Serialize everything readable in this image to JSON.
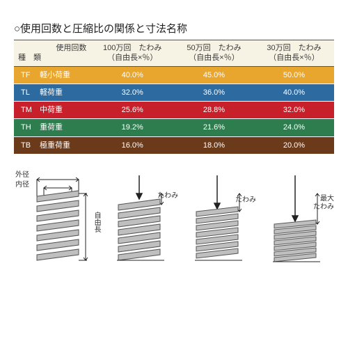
{
  "title": "○使用回数と圧縮比の関係と寸法名称",
  "colors": {
    "header_bg": "#f6f2e4",
    "spring_fill": "#bfbfbf",
    "spring_stroke": "#555555",
    "arrow": "#222222"
  },
  "table": {
    "type": "table",
    "header": {
      "col0_line1": "使用回数",
      "col0_line2": "種　類",
      "col1_line1": "100万回　たわみ",
      "col1_line2": "（自由長×％）",
      "col2_line1": "50万回　たわみ",
      "col2_line2": "（自由長×％）",
      "col3_line1": "30万回　たわみ",
      "col3_line2": "（自由長×％）"
    },
    "rows": [
      {
        "code": "TF",
        "name": "軽小荷重",
        "v1": "40.0%",
        "v2": "45.0%",
        "v3": "50.0%",
        "bg": "#e9a62e"
      },
      {
        "code": "TL",
        "name": "軽荷重",
        "v1": "32.0%",
        "v2": "36.0%",
        "v3": "40.0%",
        "bg": "#2c6aa0"
      },
      {
        "code": "TM",
        "name": "中荷重",
        "v1": "25.6%",
        "v2": "28.8%",
        "v3": "32.0%",
        "bg": "#c8202a"
      },
      {
        "code": "TH",
        "name": "重荷重",
        "v1": "19.2%",
        "v2": "21.6%",
        "v3": "24.0%",
        "bg": "#2e7d4f"
      },
      {
        "code": "TB",
        "name": "極重荷重",
        "v1": "16.0%",
        "v2": "18.0%",
        "v3": "20.0%",
        "bg": "#6a3a1a"
      }
    ]
  },
  "diagram_labels": {
    "outer": "外径",
    "inner": "内径",
    "free_len": "自由長",
    "deflection": "たわみ",
    "max_deflection": "最大",
    "max_deflection2": "たわみ"
  }
}
